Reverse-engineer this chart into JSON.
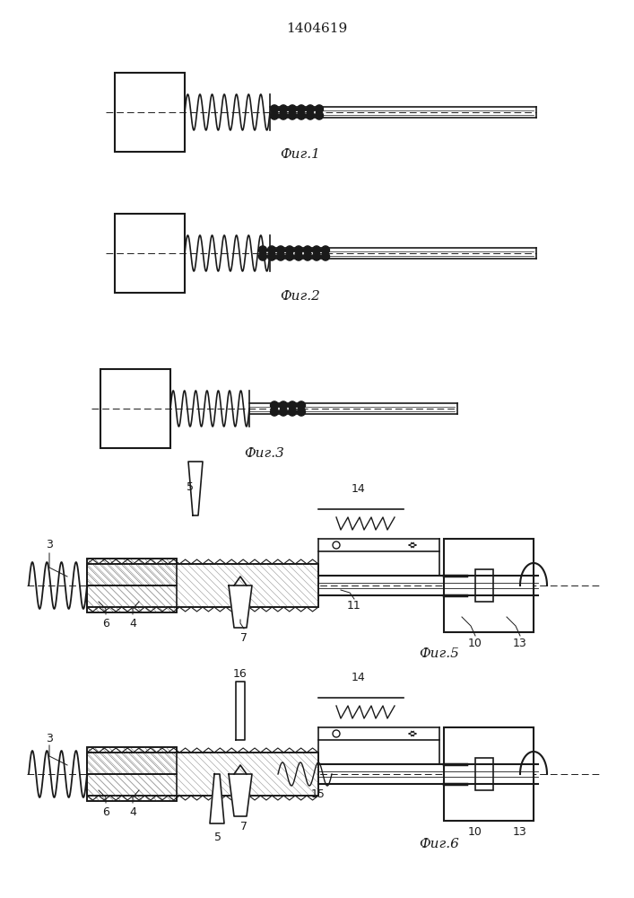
{
  "title": "1404619",
  "fig_labels": [
    "Фиг.1",
    "Фиг.2",
    "Фиг.3",
    "Фиг.5",
    "Фиг.6"
  ],
  "bg_color": "#ffffff",
  "line_color": "#1a1a1a",
  "hatch_color": "#666666"
}
